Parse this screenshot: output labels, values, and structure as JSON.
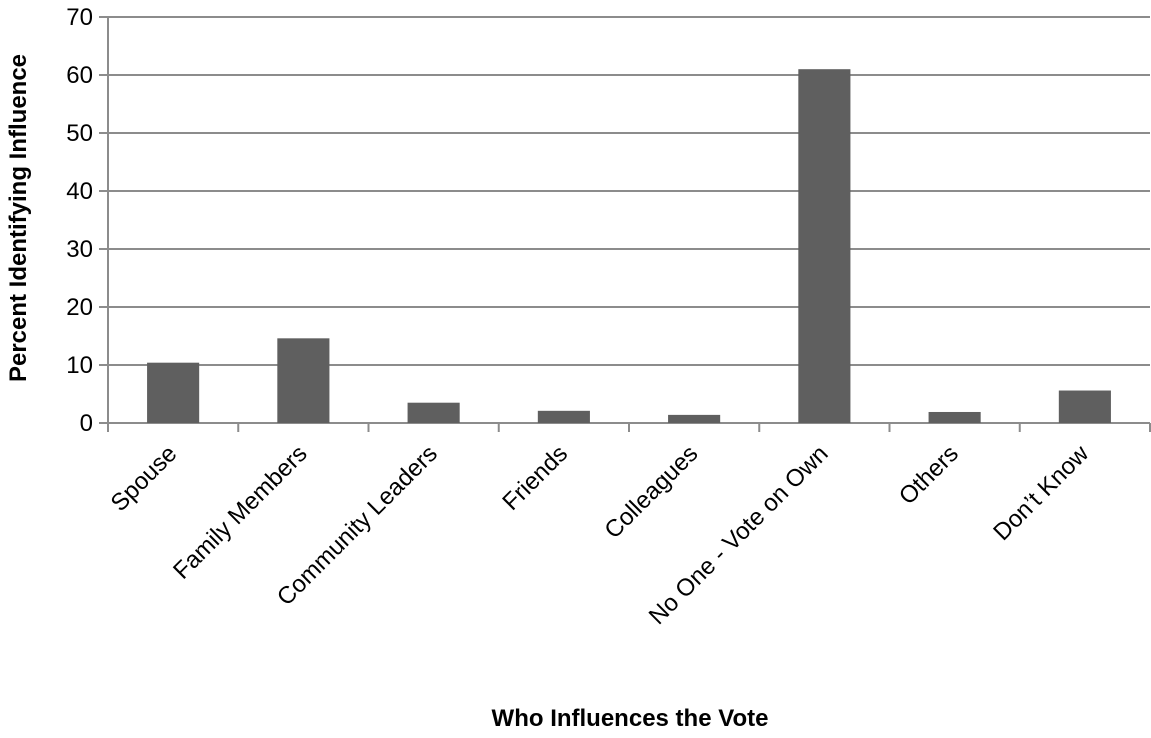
{
  "chart_data": {
    "type": "bar",
    "categories": [
      "Spouse",
      "Family Members",
      "Community Leaders",
      "Friends",
      "Colleagues",
      "No One - Vote on Own",
      "Others",
      "Don’t Know"
    ],
    "values": [
      10.4,
      14.6,
      3.5,
      2.1,
      1.4,
      61.0,
      1.9,
      5.6
    ],
    "xlabel": "Who Influences the Vote",
    "ylabel": "Percent Identifying Influence",
    "ylim": [
      0,
      70
    ],
    "yticks": [
      0,
      10,
      20,
      30,
      40,
      50,
      60,
      70
    ],
    "grid": true,
    "legend": "none",
    "colors": {
      "bar": "#5f5f5f",
      "grid": "#8c8c8c",
      "axis": "#8c8c8c"
    }
  }
}
